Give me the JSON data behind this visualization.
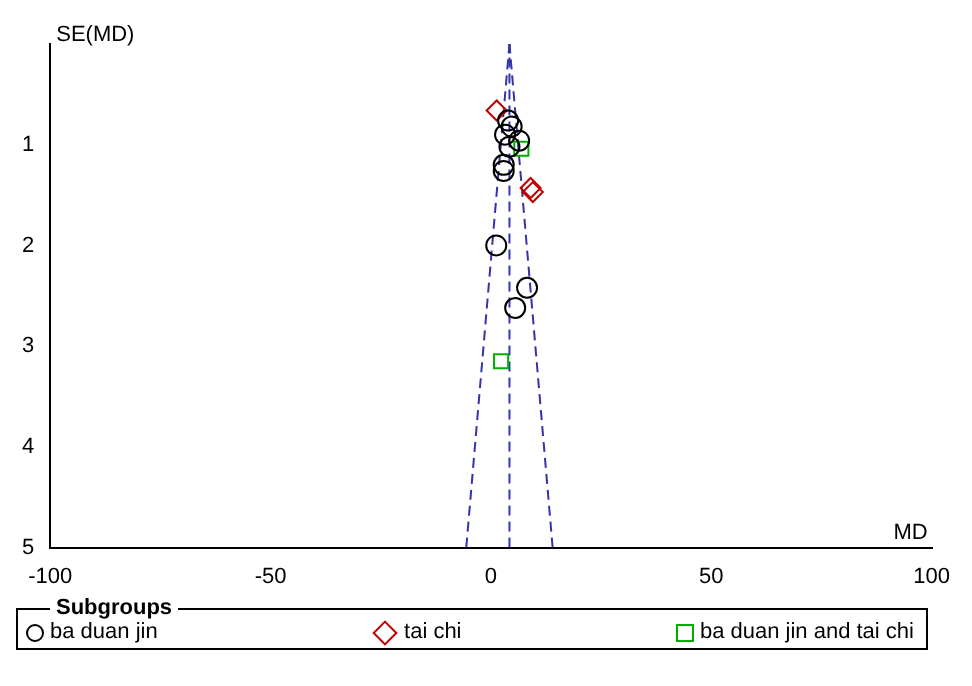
{
  "chart_data": {
    "type": "scatter",
    "xlabel": "MD",
    "ylabel": "SE(MD)",
    "legend_title": "Subgroups",
    "legend": "bottom",
    "grid": false,
    "xlim": [
      -100,
      100
    ],
    "xticks": [
      -100,
      -50,
      0,
      50,
      100
    ],
    "ylim": [
      5,
      0
    ],
    "yticks": [
      1,
      2,
      3,
      4,
      5
    ],
    "series": [
      {
        "name": "ba duan jin",
        "color": "#000000",
        "marker": "circle",
        "x": [
          3.9,
          4.7,
          3.2,
          6.4,
          4.2,
          2.9,
          2.9,
          1.2,
          8.2,
          5.5
        ],
        "values": [
          0.76,
          0.82,
          0.9,
          0.96,
          1.02,
          1.2,
          1.26,
          2.0,
          2.42,
          2.62
        ]
      },
      {
        "name": "tai chi",
        "color": "#c00000",
        "marker": "diamond",
        "x": [
          1.3,
          9.5,
          9.0
        ],
        "values": [
          0.66,
          1.47,
          1.43
        ]
      },
      {
        "name": "ba duan jin and tai chi",
        "color": "#00b000",
        "marker": "square",
        "x": [
          6.9,
          2.3
        ],
        "values": [
          1.04,
          3.15
        ]
      },
      {
        "type": "line",
        "color": "#3333aa",
        "marker": "none",
        "line_style": "dashed",
        "x": [
          -5.6,
          4.2
        ],
        "values": [
          5,
          0
        ]
      },
      {
        "type": "line",
        "color": "#3333aa",
        "marker": "none",
        "line_style": "dashed",
        "x": [
          14.0,
          4.2
        ],
        "values": [
          5,
          0
        ]
      },
      {
        "type": "line",
        "color": "#3333aa",
        "marker": "none",
        "line_style": "dashed",
        "x": [
          4.2,
          4.2
        ],
        "values": [
          5,
          0
        ]
      }
    ]
  }
}
